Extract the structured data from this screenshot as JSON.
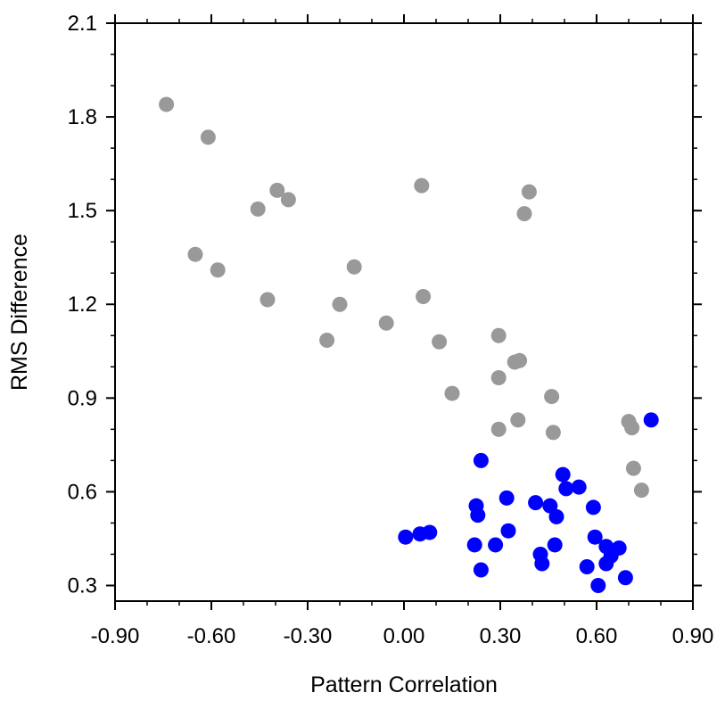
{
  "chart_data": {
    "type": "scatter",
    "xlabel": "Pattern Correlation",
    "ylabel": "RMS Difference",
    "xlim": [
      -0.9,
      0.9
    ],
    "ylim": [
      0.25,
      2.1
    ],
    "xticks": [
      -0.9,
      -0.6,
      -0.3,
      0.0,
      0.3,
      0.6,
      0.9
    ],
    "xtick_labels": [
      "-0.90",
      "-0.60",
      "-0.30",
      "0.00",
      "0.30",
      "0.60",
      "0.90"
    ],
    "yticks": [
      0.3,
      0.6,
      0.9,
      1.2,
      1.5,
      1.8,
      2.1
    ],
    "ytick_labels": [
      "0.3",
      "0.6",
      "0.9",
      "1.2",
      "1.5",
      "1.8",
      "2.1"
    ],
    "grid": false,
    "legend": "none",
    "series": [
      {
        "color": "#999999",
        "points": [
          [
            -0.74,
            1.84
          ],
          [
            -0.61,
            1.735
          ],
          [
            -0.65,
            1.36
          ],
          [
            -0.58,
            1.31
          ],
          [
            -0.455,
            1.505
          ],
          [
            -0.395,
            1.565
          ],
          [
            -0.36,
            1.535
          ],
          [
            -0.425,
            1.215
          ],
          [
            -0.24,
            1.085
          ],
          [
            -0.2,
            1.2
          ],
          [
            -0.155,
            1.32
          ],
          [
            -0.055,
            1.14
          ],
          [
            0.055,
            1.58
          ],
          [
            0.06,
            1.225
          ],
          [
            0.11,
            1.08
          ],
          [
            0.15,
            0.915
          ],
          [
            0.295,
            1.1
          ],
          [
            0.295,
            0.965
          ],
          [
            0.345,
            1.015
          ],
          [
            0.36,
            1.02
          ],
          [
            0.295,
            0.8
          ],
          [
            0.355,
            0.83
          ],
          [
            0.375,
            1.49
          ],
          [
            0.39,
            1.56
          ],
          [
            0.46,
            0.905
          ],
          [
            0.465,
            0.79
          ],
          [
            0.7,
            0.825
          ],
          [
            0.71,
            0.805
          ],
          [
            0.715,
            0.675
          ],
          [
            0.74,
            0.605
          ]
        ]
      },
      {
        "color": "#0000ff",
        "points": [
          [
            0.005,
            0.455
          ],
          [
            0.05,
            0.465
          ],
          [
            0.08,
            0.47
          ],
          [
            0.22,
            0.43
          ],
          [
            0.225,
            0.555
          ],
          [
            0.23,
            0.525
          ],
          [
            0.24,
            0.7
          ],
          [
            0.24,
            0.35
          ],
          [
            0.285,
            0.43
          ],
          [
            0.32,
            0.58
          ],
          [
            0.325,
            0.475
          ],
          [
            0.41,
            0.565
          ],
          [
            0.425,
            0.4
          ],
          [
            0.43,
            0.37
          ],
          [
            0.455,
            0.555
          ],
          [
            0.47,
            0.43
          ],
          [
            0.475,
            0.52
          ],
          [
            0.495,
            0.655
          ],
          [
            0.505,
            0.61
          ],
          [
            0.545,
            0.615
          ],
          [
            0.57,
            0.36
          ],
          [
            0.59,
            0.55
          ],
          [
            0.595,
            0.455
          ],
          [
            0.605,
            0.3
          ],
          [
            0.63,
            0.425
          ],
          [
            0.63,
            0.37
          ],
          [
            0.645,
            0.395
          ],
          [
            0.67,
            0.42
          ],
          [
            0.69,
            0.325
          ],
          [
            0.77,
            0.83
          ]
        ]
      }
    ]
  }
}
